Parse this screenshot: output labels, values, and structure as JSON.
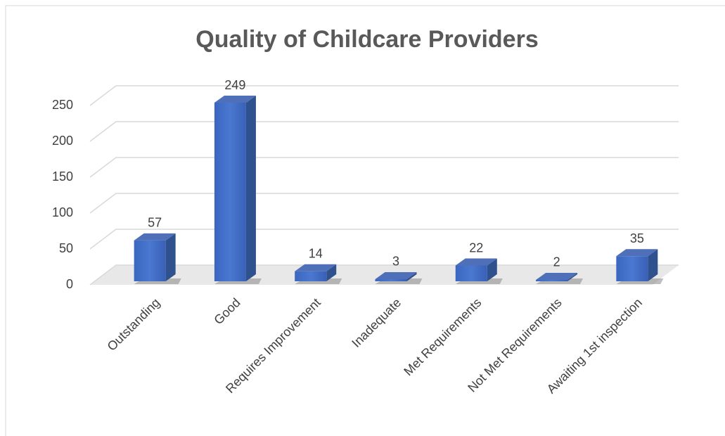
{
  "chart_data": {
    "type": "bar3d",
    "title": "Quality of Childcare Providers",
    "categories": [
      "Outstanding",
      "Good",
      "Requires Improvement",
      "Inadequate",
      "Met Requirements",
      "Not Met Requirements",
      "Awaiting 1st inspection"
    ],
    "values": [
      57,
      249,
      14,
      3,
      22,
      2,
      35
    ],
    "color": "#4472c4",
    "ylim": [
      0,
      250
    ],
    "yticks": [
      0,
      50,
      100,
      150,
      200,
      250
    ],
    "grid": true
  }
}
